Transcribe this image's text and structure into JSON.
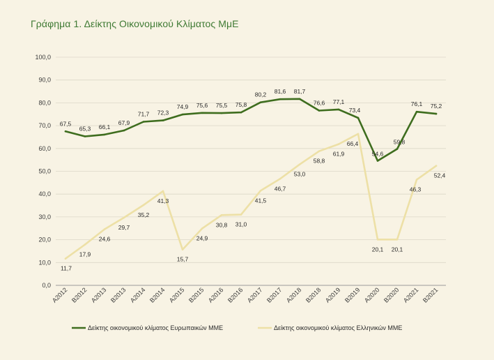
{
  "title": "Γράφημα 1. Δείκτης Οικονομικού Κλίματος ΜμΕ",
  "chart_data": {
    "type": "line",
    "categories": [
      "A2012",
      "B2012",
      "A2013",
      "B2013",
      "A2014",
      "B2014",
      "A2015",
      "B2015",
      "A2016",
      "B2016",
      "A2017",
      "B2017",
      "A2018",
      "B2018",
      "A2019",
      "B2019",
      "A2020",
      "B2020",
      "A2021",
      "B2021"
    ],
    "series": [
      {
        "name": "Δείκτης οικονομικού κλίματος Ευρωπαικών ΜΜΕ",
        "color": "#3e6d1e",
        "values": [
          67.5,
          65.3,
          66.1,
          67.9,
          71.7,
          72.3,
          74.9,
          75.6,
          75.5,
          75.8,
          80.2,
          81.6,
          81.7,
          76.6,
          77.1,
          73.4,
          54.6,
          59.8,
          76.1,
          75.2
        ],
        "labels": [
          "67,5",
          "65,3",
          "66,1",
          "67,9",
          "71,7",
          "72,3",
          "74,9",
          "75,6",
          "75,5",
          "75,8",
          "80,2",
          "81,6",
          "81,7",
          "76,6",
          "77,1",
          "73,4",
          "54,6",
          "59,8",
          "76,1",
          "75,2"
        ]
      },
      {
        "name": "Δείκτης οικονομικού κλίματος Ελληνικών ΜΜΕ",
        "color": "#ede0a6",
        "values": [
          11.7,
          17.9,
          24.6,
          29.7,
          35.2,
          41.3,
          15.7,
          24.9,
          30.8,
          31.0,
          41.5,
          46.7,
          53.0,
          58.8,
          61.9,
          66.4,
          20.1,
          20.1,
          46.3,
          52.4
        ],
        "labels": [
          "11,7",
          "17,9",
          "24,6",
          "29,7",
          "35,2",
          "41,3",
          "15,7",
          "24,9",
          "30,8",
          "31,0",
          "41,5",
          "46,7",
          "53,0",
          "58,8",
          "61,9",
          "66,4",
          "20,1",
          "20,1",
          "46,3",
          "52,4"
        ]
      }
    ],
    "ylim": [
      0,
      100
    ],
    "yticks": [
      "0,0",
      "10,0",
      "20,0",
      "30,0",
      "40,0",
      "50,0",
      "60,0",
      "70,0",
      "80,0",
      "90,0",
      "100,0"
    ],
    "grid": true,
    "legend": "bottom"
  }
}
